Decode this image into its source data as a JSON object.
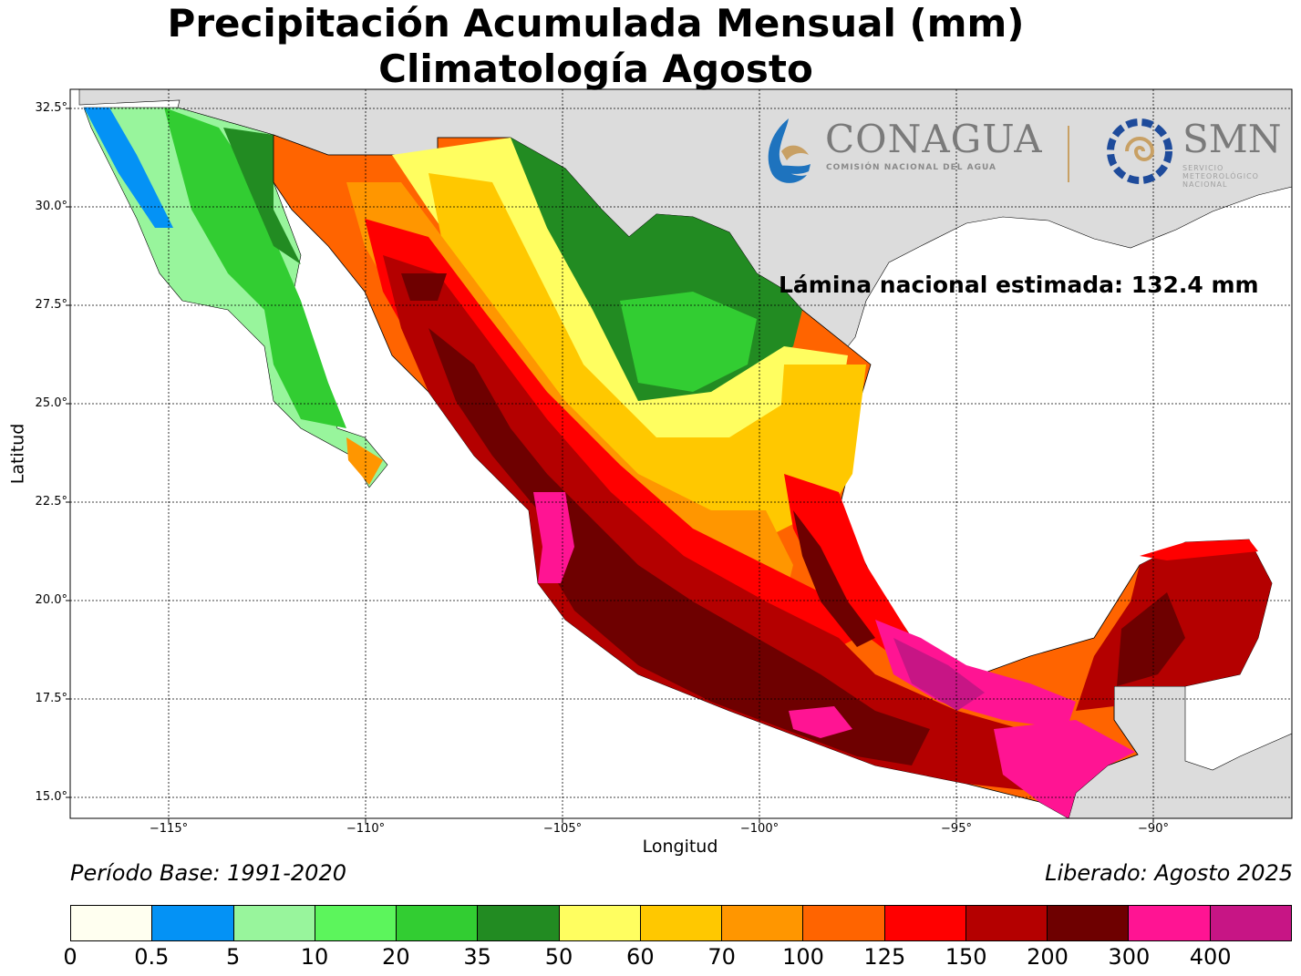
{
  "title": {
    "line1": "Precipitación Acumulada Mensual (mm)",
    "line2": "Climatología Agosto"
  },
  "annotation": "Lámina nacional estimada: 132.4 mm",
  "footer": {
    "period": "Período Base: 1991-2020",
    "released": "Liberado: Agosto 2025"
  },
  "axes": {
    "xlabel": "Longitud",
    "ylabel": "Latitud",
    "xticks": [
      "−115°",
      "−110°",
      "−105°",
      "−100°",
      "−95°",
      "−90°"
    ],
    "yticks": [
      "32.5°",
      "30.0°",
      "27.5°",
      "25.0°",
      "22.5°",
      "20.0°",
      "17.5°",
      "15.0°"
    ],
    "xlim": [
      -117.5,
      -86.5
    ],
    "ylim": [
      14.5,
      33.0
    ],
    "grid": true
  },
  "logos": {
    "conagua": "CONAGUA",
    "conagua_sub": "COMISIÓN NACIONAL DEL AGUA",
    "smn": "SMN",
    "smn_sub": "SERVICIO METEOROLÓGICO NACIONAL"
  },
  "colorbar": {
    "labels": [
      "0",
      "0.5",
      "5",
      "10",
      "20",
      "35",
      "50",
      "60",
      "70",
      "100",
      "125",
      "150",
      "200",
      "300",
      "400"
    ],
    "colors": [
      "#fffff0",
      "#0492f5",
      "#98f59c",
      "#5cf55c",
      "#32cd32",
      "#228b22",
      "#fffe60",
      "#ffc800",
      "#ff9600",
      "#ff6400",
      "#ff0000",
      "#b40000",
      "#6e0000",
      "#ff1493",
      "#c71585"
    ]
  },
  "colors": {
    "land_outside": "#dcdcdc",
    "ocean": "#ffffff"
  }
}
